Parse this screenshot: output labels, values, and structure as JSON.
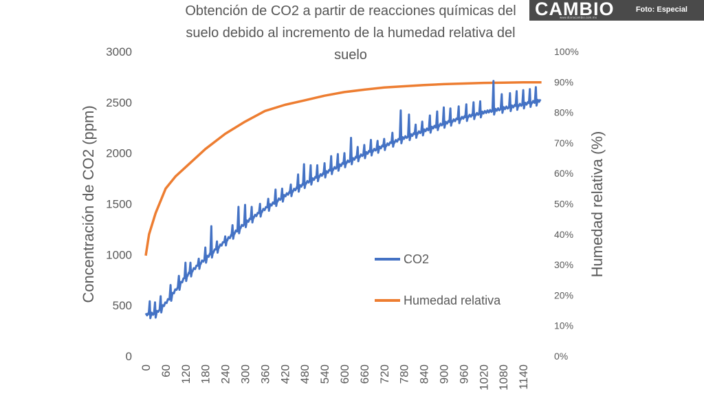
{
  "watermark": {
    "brand": "CAMBIO",
    "site": "www.diariocambio.com.mx",
    "credit": "Foto: Especial"
  },
  "chart_data": {
    "type": "line",
    "title_lines": [
      "Obtención de CO2 a partir de reacciones químicas del",
      "suelo debido al incremento de la humedad relativa del",
      "suelo"
    ],
    "ylabel": "Concentración de CO2 (ppm)",
    "y2label": "Humedad relativa (%)",
    "xlim": [
      0,
      1200
    ],
    "ylim": [
      0,
      3000
    ],
    "y2lim": [
      0,
      100
    ],
    "y_ticks": [
      0,
      500,
      1000,
      1500,
      2000,
      2500,
      3000
    ],
    "y2_ticks": [
      "0%",
      "10%",
      "20%",
      "30%",
      "40%",
      "50%",
      "60%",
      "70%",
      "80%",
      "90%",
      "100%"
    ],
    "x_ticks": [
      0,
      60,
      120,
      180,
      240,
      300,
      360,
      420,
      480,
      540,
      600,
      660,
      720,
      780,
      840,
      900,
      960,
      1020,
      1080,
      1140
    ],
    "legend": [
      {
        "name": "CO2",
        "color": "#4472C4"
      },
      {
        "name": "Humedad relativa",
        "color": "#ED7D31"
      }
    ],
    "series": [
      {
        "name": "CO2",
        "axis": "left",
        "color": "#4472C4",
        "baseline": {
          "x": [
            0,
            30,
            60,
            120,
            180,
            240,
            300,
            360,
            420,
            480,
            540,
            600,
            660,
            720,
            780,
            840,
            900,
            960,
            1020,
            1080,
            1140,
            1195
          ],
          "y": [
            410,
            420,
            520,
            780,
            960,
            1130,
            1310,
            1450,
            1580,
            1700,
            1800,
            1900,
            1990,
            2070,
            2150,
            2220,
            2290,
            2350,
            2400,
            2440,
            2480,
            2520
          ]
        },
        "spikes": [
          {
            "x": 12,
            "y": 540
          },
          {
            "x": 28,
            "y": 530
          },
          {
            "x": 45,
            "y": 590
          },
          {
            "x": 75,
            "y": 700
          },
          {
            "x": 100,
            "y": 790
          },
          {
            "x": 120,
            "y": 920
          },
          {
            "x": 135,
            "y": 920
          },
          {
            "x": 160,
            "y": 960
          },
          {
            "x": 180,
            "y": 1070
          },
          {
            "x": 198,
            "y": 1280
          },
          {
            "x": 215,
            "y": 1130
          },
          {
            "x": 240,
            "y": 1180
          },
          {
            "x": 262,
            "y": 1290
          },
          {
            "x": 280,
            "y": 1470
          },
          {
            "x": 300,
            "y": 1490
          },
          {
            "x": 320,
            "y": 1470
          },
          {
            "x": 345,
            "y": 1500
          },
          {
            "x": 370,
            "y": 1550
          },
          {
            "x": 392,
            "y": 1640
          },
          {
            "x": 412,
            "y": 1650
          },
          {
            "x": 438,
            "y": 1690
          },
          {
            "x": 460,
            "y": 1790
          },
          {
            "x": 478,
            "y": 1890
          },
          {
            "x": 498,
            "y": 1880
          },
          {
            "x": 518,
            "y": 1880
          },
          {
            "x": 540,
            "y": 1900
          },
          {
            "x": 560,
            "y": 1970
          },
          {
            "x": 580,
            "y": 1990
          },
          {
            "x": 600,
            "y": 2000
          },
          {
            "x": 620,
            "y": 2150
          },
          {
            "x": 640,
            "y": 2060
          },
          {
            "x": 660,
            "y": 2080
          },
          {
            "x": 680,
            "y": 2130
          },
          {
            "x": 700,
            "y": 2120
          },
          {
            "x": 720,
            "y": 2140
          },
          {
            "x": 745,
            "y": 2200
          },
          {
            "x": 770,
            "y": 2420
          },
          {
            "x": 795,
            "y": 2380
          },
          {
            "x": 815,
            "y": 2280
          },
          {
            "x": 835,
            "y": 2310
          },
          {
            "x": 858,
            "y": 2370
          },
          {
            "x": 880,
            "y": 2410
          },
          {
            "x": 900,
            "y": 2450
          },
          {
            "x": 920,
            "y": 2440
          },
          {
            "x": 945,
            "y": 2460
          },
          {
            "x": 968,
            "y": 2480
          },
          {
            "x": 990,
            "y": 2500
          },
          {
            "x": 1010,
            "y": 2510
          },
          {
            "x": 1050,
            "y": 2710
          },
          {
            "x": 1075,
            "y": 2580
          },
          {
            "x": 1100,
            "y": 2590
          },
          {
            "x": 1120,
            "y": 2610
          },
          {
            "x": 1140,
            "y": 2620
          },
          {
            "x": 1160,
            "y": 2630
          },
          {
            "x": 1178,
            "y": 2650
          }
        ]
      },
      {
        "name": "Humedad relativa",
        "axis": "right",
        "color": "#ED7D31",
        "x": [
          0,
          10,
          30,
          60,
          90,
          120,
          180,
          240,
          300,
          360,
          420,
          480,
          540,
          600,
          660,
          720,
          780,
          840,
          900,
          960,
          1020,
          1080,
          1140,
          1195
        ],
        "y": [
          33,
          40,
          47,
          55,
          59,
          62,
          68,
          73,
          77,
          80.5,
          82.5,
          84,
          85.5,
          86.7,
          87.5,
          88.2,
          88.6,
          89,
          89.3,
          89.5,
          89.7,
          89.8,
          89.9,
          89.9
        ]
      }
    ]
  }
}
